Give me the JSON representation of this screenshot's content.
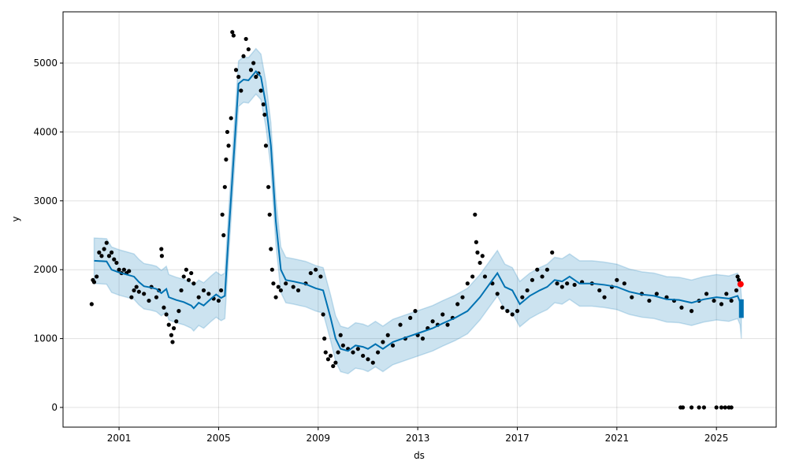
{
  "chart_data": {
    "type": "line",
    "title": "",
    "xlabel": "ds",
    "ylabel": "y",
    "xlim": [
      1998.75,
      2027.4
    ],
    "ylim": [
      -286,
      5744
    ],
    "grid": true,
    "xticks": [
      2001,
      2005,
      2009,
      2013,
      2017,
      2021,
      2025
    ],
    "xtick_labels": [
      "2001",
      "2005",
      "2009",
      "2013",
      "2017",
      "2021",
      "2025"
    ],
    "yticks": [
      0,
      1000,
      2000,
      3000,
      4000,
      5000
    ],
    "ytick_labels": [
      "0",
      "1000",
      "2000",
      "3000",
      "4000",
      "5000"
    ],
    "colors": {
      "forecast": "#0072B2",
      "interval": "#0072B2",
      "observed": "#000000",
      "highlight": "#ff0000"
    },
    "interval_halfwidth": 330,
    "forecast_line": [
      [
        2000.0,
        2130
      ],
      [
        2000.5,
        2120
      ],
      [
        2000.7,
        2000
      ],
      [
        2001.0,
        1960
      ],
      [
        2001.3,
        1930
      ],
      [
        2001.6,
        1900
      ],
      [
        2001.8,
        1820
      ],
      [
        2002.0,
        1760
      ],
      [
        2002.3,
        1740
      ],
      [
        2002.5,
        1720
      ],
      [
        2002.7,
        1660
      ],
      [
        2002.9,
        1720
      ],
      [
        2003.0,
        1600
      ],
      [
        2003.3,
        1560
      ],
      [
        2003.6,
        1530
      ],
      [
        2003.9,
        1480
      ],
      [
        2004.0,
        1440
      ],
      [
        2004.2,
        1520
      ],
      [
        2004.4,
        1480
      ],
      [
        2004.7,
        1580
      ],
      [
        2004.9,
        1640
      ],
      [
        2005.1,
        1590
      ],
      [
        2005.25,
        1620
      ],
      [
        2005.4,
        2500
      ],
      [
        2005.6,
        3600
      ],
      [
        2005.8,
        4700
      ],
      [
        2006.0,
        4760
      ],
      [
        2006.2,
        4750
      ],
      [
        2006.5,
        4880
      ],
      [
        2006.7,
        4800
      ],
      [
        2006.9,
        4400
      ],
      [
        2007.1,
        3800
      ],
      [
        2007.3,
        2700
      ],
      [
        2007.5,
        2000
      ],
      [
        2007.7,
        1850
      ],
      [
        2008.0,
        1830
      ],
      [
        2008.5,
        1790
      ],
      [
        2008.9,
        1730
      ],
      [
        2009.2,
        1700
      ],
      [
        2009.5,
        1300
      ],
      [
        2009.7,
        1000
      ],
      [
        2009.9,
        850
      ],
      [
        2010.2,
        820
      ],
      [
        2010.5,
        900
      ],
      [
        2010.8,
        880
      ],
      [
        2011.0,
        850
      ],
      [
        2011.3,
        920
      ],
      [
        2011.6,
        850
      ],
      [
        2012.0,
        950
      ],
      [
        2012.4,
        1000
      ],
      [
        2012.8,
        1050
      ],
      [
        2013.2,
        1100
      ],
      [
        2013.6,
        1150
      ],
      [
        2014.0,
        1220
      ],
      [
        2014.5,
        1300
      ],
      [
        2015.0,
        1400
      ],
      [
        2015.5,
        1600
      ],
      [
        2016.0,
        1850
      ],
      [
        2016.2,
        1950
      ],
      [
        2016.5,
        1750
      ],
      [
        2016.8,
        1700
      ],
      [
        2017.1,
        1500
      ],
      [
        2017.5,
        1620
      ],
      [
        2017.9,
        1700
      ],
      [
        2018.2,
        1750
      ],
      [
        2018.5,
        1850
      ],
      [
        2018.8,
        1830
      ],
      [
        2019.1,
        1900
      ],
      [
        2019.5,
        1800
      ],
      [
        2020.0,
        1800
      ],
      [
        2020.5,
        1780
      ],
      [
        2021.0,
        1750
      ],
      [
        2021.5,
        1680
      ],
      [
        2022.0,
        1640
      ],
      [
        2022.5,
        1620
      ],
      [
        2023.0,
        1570
      ],
      [
        2023.5,
        1560
      ],
      [
        2024.0,
        1520
      ],
      [
        2024.5,
        1570
      ],
      [
        2025.0,
        1600
      ],
      [
        2025.5,
        1580
      ],
      [
        2025.85,
        1620
      ],
      [
        2025.95,
        1530
      ]
    ],
    "forecast_segment": {
      "x": 2026.0,
      "yhat_min": 1300,
      "yhat_max": 1570,
      "lower": 1000,
      "upper": 1620
    },
    "observed": [
      [
        1999.9,
        1500
      ],
      [
        1999.95,
        1850
      ],
      [
        2000,
        1820
      ],
      [
        2000.1,
        1900
      ],
      [
        2000.2,
        2250
      ],
      [
        2000.3,
        2200
      ],
      [
        2000.4,
        2300
      ],
      [
        2000.5,
        2390
      ],
      [
        2000.6,
        2200
      ],
      [
        2000.7,
        2250
      ],
      [
        2000.8,
        2150
      ],
      [
        2000.9,
        2100
      ],
      [
        2001,
        2000
      ],
      [
        2001.1,
        1950
      ],
      [
        2001.2,
        2000
      ],
      [
        2001.3,
        1950
      ],
      [
        2001.4,
        1980
      ],
      [
        2001.5,
        1600
      ],
      [
        2001.6,
        1700
      ],
      [
        2001.7,
        1750
      ],
      [
        2001.8,
        1680
      ],
      [
        2002,
        1650
      ],
      [
        2002.2,
        1550
      ],
      [
        2002.3,
        1750
      ],
      [
        2002.5,
        1600
      ],
      [
        2002.6,
        1700
      ],
      [
        2002.7,
        2300
      ],
      [
        2002.72,
        2200
      ],
      [
        2002.8,
        1450
      ],
      [
        2002.9,
        1350
      ],
      [
        2003,
        1200
      ],
      [
        2003.1,
        1050
      ],
      [
        2003.15,
        950
      ],
      [
        2003.2,
        1150
      ],
      [
        2003.3,
        1250
      ],
      [
        2003.4,
        1400
      ],
      [
        2003.5,
        1700
      ],
      [
        2003.6,
        1900
      ],
      [
        2003.7,
        2000
      ],
      [
        2003.8,
        1850
      ],
      [
        2003.9,
        1950
      ],
      [
        2004,
        1800
      ],
      [
        2004.2,
        1600
      ],
      [
        2004.4,
        1700
      ],
      [
        2004.6,
        1650
      ],
      [
        2004.8,
        1580
      ],
      [
        2005,
        1550
      ],
      [
        2005.1,
        1700
      ],
      [
        2005.15,
        2800
      ],
      [
        2005.2,
        2500
      ],
      [
        2005.25,
        3200
      ],
      [
        2005.3,
        3600
      ],
      [
        2005.35,
        4000
      ],
      [
        2005.4,
        3800
      ],
      [
        2005.5,
        4200
      ],
      [
        2005.55,
        5450
      ],
      [
        2005.6,
        5400
      ],
      [
        2005.7,
        4900
      ],
      [
        2005.8,
        4800
      ],
      [
        2005.9,
        4600
      ],
      [
        2006,
        5100
      ],
      [
        2006.1,
        5350
      ],
      [
        2006.2,
        5200
      ],
      [
        2006.3,
        4900
      ],
      [
        2006.4,
        5000
      ],
      [
        2006.5,
        4800
      ],
      [
        2006.6,
        4850
      ],
      [
        2006.7,
        4600
      ],
      [
        2006.8,
        4400
      ],
      [
        2006.85,
        4250
      ],
      [
        2006.9,
        3800
      ],
      [
        2007,
        3200
      ],
      [
        2007.05,
        2800
      ],
      [
        2007.1,
        2300
      ],
      [
        2007.15,
        2000
      ],
      [
        2007.2,
        1800
      ],
      [
        2007.3,
        1600
      ],
      [
        2007.4,
        1750
      ],
      [
        2007.5,
        1700
      ],
      [
        2007.7,
        1800
      ],
      [
        2008,
        1750
      ],
      [
        2008.2,
        1700
      ],
      [
        2008.5,
        1800
      ],
      [
        2008.7,
        1950
      ],
      [
        2008.9,
        2000
      ],
      [
        2009.1,
        1900
      ],
      [
        2009.2,
        1350
      ],
      [
        2009.25,
        1000
      ],
      [
        2009.3,
        800
      ],
      [
        2009.4,
        700
      ],
      [
        2009.5,
        750
      ],
      [
        2009.6,
        600
      ],
      [
        2009.7,
        650
      ],
      [
        2009.8,
        800
      ],
      [
        2009.9,
        1050
      ],
      [
        2010,
        900
      ],
      [
        2010.2,
        850
      ],
      [
        2010.4,
        800
      ],
      [
        2010.6,
        850
      ],
      [
        2010.8,
        750
      ],
      [
        2011,
        700
      ],
      [
        2011.2,
        650
      ],
      [
        2011.4,
        800
      ],
      [
        2011.6,
        950
      ],
      [
        2011.8,
        1050
      ],
      [
        2012,
        900
      ],
      [
        2012.3,
        1200
      ],
      [
        2012.5,
        1000
      ],
      [
        2012.7,
        1300
      ],
      [
        2012.9,
        1400
      ],
      [
        2013,
        1050
      ],
      [
        2013.2,
        1000
      ],
      [
        2013.4,
        1150
      ],
      [
        2013.6,
        1250
      ],
      [
        2013.8,
        1200
      ],
      [
        2014,
        1350
      ],
      [
        2014.2,
        1200
      ],
      [
        2014.4,
        1300
      ],
      [
        2014.6,
        1500
      ],
      [
        2014.8,
        1600
      ],
      [
        2015,
        1800
      ],
      [
        2015.2,
        1900
      ],
      [
        2015.3,
        2800
      ],
      [
        2015.35,
        2400
      ],
      [
        2015.4,
        2250
      ],
      [
        2015.5,
        2100
      ],
      [
        2015.6,
        2200
      ],
      [
        2015.7,
        1900
      ],
      [
        2016,
        1800
      ],
      [
        2016.2,
        1650
      ],
      [
        2016.4,
        1450
      ],
      [
        2016.6,
        1400
      ],
      [
        2016.8,
        1350
      ],
      [
        2017,
        1400
      ],
      [
        2017.2,
        1600
      ],
      [
        2017.4,
        1700
      ],
      [
        2017.6,
        1850
      ],
      [
        2017.8,
        2000
      ],
      [
        2018,
        1900
      ],
      [
        2018.2,
        2000
      ],
      [
        2018.4,
        2250
      ],
      [
        2018.6,
        1800
      ],
      [
        2018.8,
        1750
      ],
      [
        2019,
        1800
      ],
      [
        2019.3,
        1780
      ],
      [
        2019.6,
        1820
      ],
      [
        2020,
        1800
      ],
      [
        2020.3,
        1700
      ],
      [
        2020.5,
        1600
      ],
      [
        2020.8,
        1750
      ],
      [
        2021,
        1850
      ],
      [
        2021.3,
        1800
      ],
      [
        2021.6,
        1600
      ],
      [
        2022,
        1650
      ],
      [
        2022.3,
        1550
      ],
      [
        2022.6,
        1650
      ],
      [
        2023,
        1600
      ],
      [
        2023.3,
        1550
      ],
      [
        2023.6,
        1450
      ],
      [
        2024,
        1400
      ],
      [
        2024.3,
        1550
      ],
      [
        2024.6,
        1650
      ],
      [
        2024.9,
        1550
      ],
      [
        2025.2,
        1500
      ],
      [
        2025.4,
        1650
      ],
      [
        2025.6,
        1550
      ],
      [
        2025.8,
        1700
      ],
      [
        2025.85,
        1900
      ],
      [
        2025.9,
        1850
      ],
      [
        2023.56,
        0
      ],
      [
        2023.65,
        0
      ],
      [
        2024.0,
        0
      ],
      [
        2024.3,
        0
      ],
      [
        2024.5,
        0
      ],
      [
        2025.0,
        0
      ],
      [
        2025.2,
        0
      ],
      [
        2025.35,
        0
      ],
      [
        2025.5,
        0
      ],
      [
        2025.6,
        0
      ]
    ],
    "highlight_point": [
      2025.97,
      1790
    ]
  }
}
